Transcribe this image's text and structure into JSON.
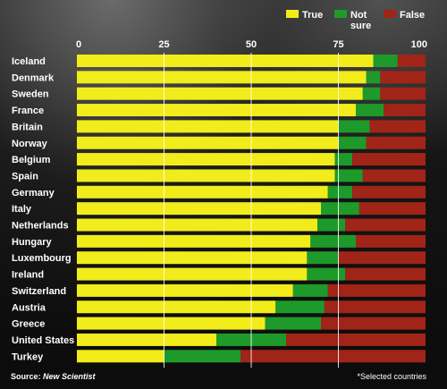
{
  "chart_data": {
    "type": "bar",
    "stacked": true,
    "orientation": "horizontal",
    "categories": [
      "Iceland",
      "Denmark",
      "Sweden",
      "France",
      "Britain",
      "Norway",
      "Belgium",
      "Spain",
      "Germany",
      "Italy",
      "Netherlands",
      "Hungary",
      "Luxembourg",
      "Ireland",
      "Switzerland",
      "Austria",
      "Greece",
      "United States",
      "Turkey"
    ],
    "series": [
      {
        "name": "True",
        "color": "#f2ec1a",
        "values": [
          85,
          83,
          82,
          80,
          75,
          75,
          74,
          74,
          72,
          70,
          69,
          67,
          66,
          66,
          62,
          57,
          54,
          40,
          25
        ]
      },
      {
        "name": "Not sure",
        "color": "#1e9a2a",
        "values": [
          7,
          4,
          5,
          8,
          9,
          8,
          5,
          8,
          7,
          11,
          8,
          13,
          9,
          11,
          10,
          14,
          16,
          20,
          22
        ]
      },
      {
        "name": "False",
        "color": "#a12418",
        "values": [
          8,
          13,
          13,
          12,
          16,
          17,
          21,
          18,
          21,
          19,
          23,
          20,
          25,
          23,
          28,
          29,
          30,
          40,
          53
        ]
      }
    ],
    "xticks": [
      "0",
      "25",
      "50",
      "75",
      "100"
    ],
    "xlim": [
      0,
      100
    ],
    "grid": true,
    "legend": [
      {
        "lines": [
          "True"
        ],
        "color": "#f2ec1a"
      },
      {
        "lines": [
          "Not",
          "sure"
        ],
        "color": "#1e9a2a"
      },
      {
        "lines": [
          "False"
        ],
        "color": "#a12418"
      }
    ],
    "legend_position": "top-right"
  },
  "footer": {
    "source_label": "Source:",
    "source_value": "New Scientist",
    "note": "*Selected countries"
  }
}
